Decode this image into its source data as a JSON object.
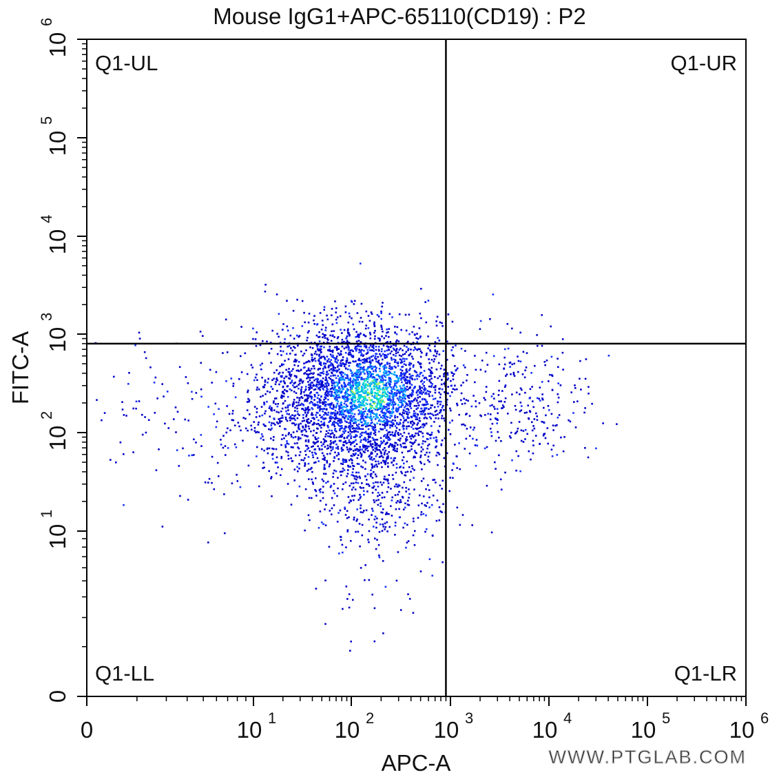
{
  "chart_data": {
    "type": "scatter",
    "title": "Mouse IgG1+APC-65110(CD19) : P2",
    "xlabel": "APC-A",
    "ylabel": "FITC-A",
    "x_scale": "biexponential",
    "y_scale": "biexponential",
    "xlim": [
      0,
      1000000
    ],
    "ylim": [
      0,
      1000000
    ],
    "x_ticks": [
      {
        "value": 0,
        "label": "0",
        "exp": ""
      },
      {
        "value": 10,
        "label": "10",
        "exp": "1"
      },
      {
        "value": 100,
        "label": "10",
        "exp": "2"
      },
      {
        "value": 1000,
        "label": "10",
        "exp": "3"
      },
      {
        "value": 10000,
        "label": "10",
        "exp": "4"
      },
      {
        "value": 100000,
        "label": "10",
        "exp": "5"
      },
      {
        "value": 1000000,
        "label": "10",
        "exp": "6"
      }
    ],
    "y_ticks": [
      {
        "value": 0,
        "label": "0",
        "exp": ""
      },
      {
        "value": 10,
        "label": "10",
        "exp": "1"
      },
      {
        "value": 100,
        "label": "10",
        "exp": "2"
      },
      {
        "value": 1000,
        "label": "10",
        "exp": "3"
      },
      {
        "value": 10000,
        "label": "10",
        "exp": "4"
      },
      {
        "value": 100000,
        "label": "10",
        "exp": "5"
      },
      {
        "value": 1000000,
        "label": "10",
        "exp": "6"
      }
    ],
    "gate": {
      "x": 900,
      "y": 800
    },
    "quadrants": [
      {
        "label": "Q1-UL",
        "position": "top-left"
      },
      {
        "label": "Q1-UR",
        "position": "top-right"
      },
      {
        "label": "Q1-LL",
        "position": "bottom-left"
      },
      {
        "label": "Q1-LR",
        "position": "bottom-right"
      }
    ],
    "populations": [
      {
        "name": "",
        "center": [
          150,
          250
        ],
        "spread": [
          0.45,
          0.35
        ],
        "count": 2600
      },
      {
        "name": "",
        "center": [
          60,
          200
        ],
        "spread": [
          0.45,
          0.4
        ],
        "count": 900
      },
      {
        "name": "",
        "center": [
          180,
          25
        ],
        "spread": [
          0.35,
          0.4
        ],
        "count": 450
      },
      {
        "name": "",
        "center": [
          6000,
          200
        ],
        "spread": [
          0.35,
          0.35
        ],
        "count": 240
      },
      {
        "name": "",
        "center": [
          5,
          120
        ],
        "spread": [
          0.35,
          0.4
        ],
        "count": 120
      }
    ],
    "density_colors": [
      "#0000c8",
      "#1432ff",
      "#00a0ff",
      "#00e0c8",
      "#a0f050"
    ],
    "grid": false
  },
  "watermark": "WWW.PTGLAB.COM"
}
